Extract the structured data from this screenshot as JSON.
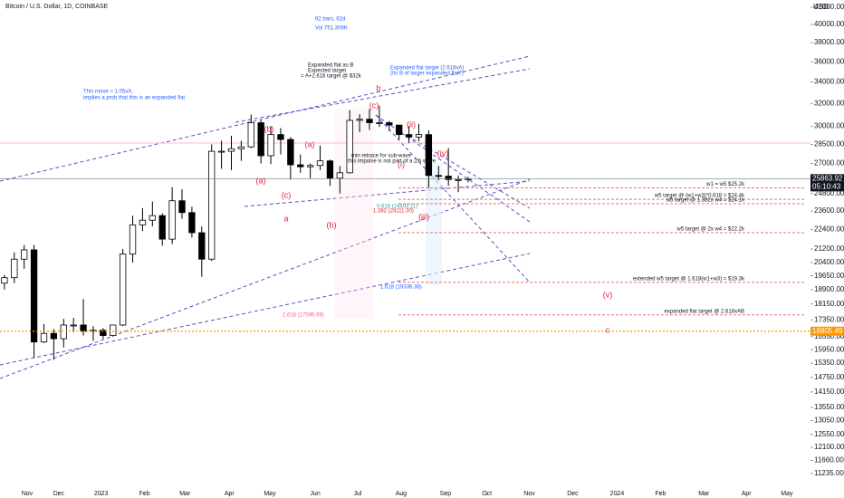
{
  "chart_data": {
    "type": "candlestick",
    "title": "Bitcoin / U.S. Dollar, 1D, COINBASE",
    "y_unit_label": "USD",
    "log_scale": true,
    "up_color": "#ffffff",
    "down_color": "#000000",
    "ylim": [
      10620,
      42870
    ],
    "yticks": [
      {
        "value": 42000,
        "label": "42000.00"
      },
      {
        "value": 40000,
        "label": "40000.00"
      },
      {
        "value": 38000,
        "label": "38000.00"
      },
      {
        "value": 36000,
        "label": "36000.00"
      },
      {
        "value": 34000,
        "label": "34000.00"
      },
      {
        "value": 32000,
        "label": "32000.00"
      },
      {
        "value": 30000,
        "label": "30000.00"
      },
      {
        "value": 28500,
        "label": "28500.00"
      },
      {
        "value": 27000,
        "label": "27000.00"
      },
      {
        "value": 24800,
        "label": "24800.00"
      },
      {
        "value": 23600,
        "label": "23600.00"
      },
      {
        "value": 22400,
        "label": "22400.00"
      },
      {
        "value": 21200,
        "label": "21200.00"
      },
      {
        "value": 20400,
        "label": "20400.00"
      },
      {
        "value": 19650,
        "label": "19650.00"
      },
      {
        "value": 18900,
        "label": "18900.00"
      },
      {
        "value": 18150,
        "label": "18150.00"
      },
      {
        "value": 17350,
        "label": "17350.00"
      },
      {
        "value": 16550,
        "label": "16550.00"
      },
      {
        "value": 15950,
        "label": "15950.00"
      },
      {
        "value": 15350,
        "label": "15350.00"
      },
      {
        "value": 14750,
        "label": "14750.00"
      },
      {
        "value": 14150,
        "label": "14150.00"
      },
      {
        "value": 13550,
        "label": "13550.00"
      },
      {
        "value": 13050,
        "label": "13050.00"
      },
      {
        "value": 12550,
        "label": "12550.00"
      },
      {
        "value": 12100,
        "label": "12100.00"
      },
      {
        "value": 11660,
        "label": "11660.00"
      },
      {
        "value": 11235,
        "label": "11235.00"
      }
    ],
    "xlim": [
      -0.45,
      81.7
    ],
    "xticks": [
      {
        "value": 2.3,
        "label": "Nov"
      },
      {
        "value": 5.5,
        "label": "Dec"
      },
      {
        "value": 9.8,
        "label": "2023"
      },
      {
        "value": 14.2,
        "label": "Feb"
      },
      {
        "value": 18.3,
        "label": "Mar"
      },
      {
        "value": 22.8,
        "label": "Apr"
      },
      {
        "value": 26.9,
        "label": "May"
      },
      {
        "value": 31.5,
        "label": "Jun"
      },
      {
        "value": 35.8,
        "label": "Jul"
      },
      {
        "value": 40.2,
        "label": "Aug"
      },
      {
        "value": 44.7,
        "label": "Sep"
      },
      {
        "value": 48.9,
        "label": "Oct"
      },
      {
        "value": 53.2,
        "label": "Nov"
      },
      {
        "value": 57.6,
        "label": "Dec"
      },
      {
        "value": 62.1,
        "label": "2024"
      },
      {
        "value": 66.5,
        "label": "Feb"
      },
      {
        "value": 70.9,
        "label": "Mar"
      },
      {
        "value": 75.2,
        "label": "Apr"
      },
      {
        "value": 79.3,
        "label": "May"
      }
    ],
    "open": [
      19250,
      19550,
      20600,
      21150,
      16300,
      16700,
      16450,
      17100,
      17100,
      16800,
      16850,
      16600,
      17100,
      20900,
      22700,
      23000,
      23300,
      21800,
      24300,
      23500,
      22200,
      20600,
      27950,
      27950,
      28150,
      28300,
      30300,
      27600,
      29300,
      28900,
      26900,
      26750,
      26850,
      27200,
      25900,
      26300,
      30500,
      30600,
      30300,
      30300,
      30100,
      29300,
      29100,
      29300,
      26100,
      26050,
      25800,
      25800
    ],
    "high": [
      19700,
      21000,
      21450,
      21450,
      17150,
      16900,
      17400,
      17450,
      18400,
      17050,
      16950,
      17100,
      21200,
      23300,
      23800,
      24250,
      23450,
      25250,
      25100,
      23900,
      22600,
      28500,
      28800,
      29200,
      28800,
      31000,
      30500,
      30000,
      29850,
      29100,
      27700,
      27000,
      28400,
      27300,
      26800,
      31400,
      31050,
      31500,
      31800,
      30450,
      30100,
      30000,
      30200,
      29650,
      26800,
      28200,
      26100,
      26000
    ],
    "low": [
      18900,
      19250,
      20050,
      15600,
      16250,
      15500,
      16050,
      16750,
      16600,
      16350,
      16450,
      16550,
      17050,
      20400,
      22300,
      22600,
      21400,
      21500,
      23100,
      21900,
      19600,
      20500,
      26600,
      26500,
      27200,
      28200,
      27000,
      26950,
      27700,
      25800,
      26300,
      25900,
      26500,
      25350,
      24800,
      26250,
      29500,
      29700,
      29950,
      29600,
      28900,
      28600,
      28750,
      25200,
      25750,
      25350,
      24900,
      25600
    ],
    "close": [
      19550,
      20600,
      21150,
      16300,
      16700,
      16450,
      17100,
      17100,
      16800,
      16850,
      16600,
      17100,
      20900,
      22700,
      23000,
      23300,
      21800,
      24300,
      23500,
      22200,
      20600,
      27950,
      27950,
      28150,
      28300,
      30300,
      27600,
      29300,
      28900,
      26900,
      26750,
      26850,
      27200,
      25900,
      26300,
      30500,
      30600,
      30300,
      30300,
      30100,
      29300,
      29100,
      29300,
      26100,
      26050,
      25800,
      25800,
      25860
    ],
    "last_price": {
      "value": 25863.92,
      "label": "25863.92",
      "countdown": "05:10:43"
    },
    "marker_price": {
      "value": 16805.49,
      "label": "16805.49"
    },
    "levels": [
      {
        "label": "w1 = w5 $25.2k",
        "value": 25200
      },
      {
        "label": "w5 target @ (w1+w3)*0.618 = $24.4k",
        "value": 24400
      },
      {
        "label": "w5 target @ 1.382x w4 = $24.1k",
        "value": 24100
      },
      {
        "label": "w5 target @ 2x w4 = $22.2k",
        "value": 22200
      },
      {
        "label": "extended w5 target @ 1.618(w1+w3) = $19.3k",
        "value": 19300
      },
      {
        "label": "expanded flat target @ 2.618xAB",
        "value": 17600
      }
    ],
    "annotations": [
      "This move = 1.05xA,",
      "implies a prob that this is an expanded flat",
      "Expanded flat as B",
      "Expected target",
      "= A+2.618 target @ $32k",
      "Expanded flat target (2.618xA)",
      "(Its B of larger expanded flat?)",
      "92 bars, 62d",
      "Vol 751.309K",
      "min retrace for sub-wave",
      "this impulse is not part of a 2/b wave",
      "2.618 (17596.99)",
      "1.618 (19336.38)",
      "0.618 (24403.11)",
      "1.382 (24111.30)"
    ],
    "wave_labels": [
      "(b)",
      "(a)",
      "(a)",
      "(c)",
      "a",
      "(b)",
      "(c)",
      "b",
      "(ii)",
      "(i)",
      "(iv)",
      "(iii)",
      "(v)",
      "c"
    ]
  }
}
